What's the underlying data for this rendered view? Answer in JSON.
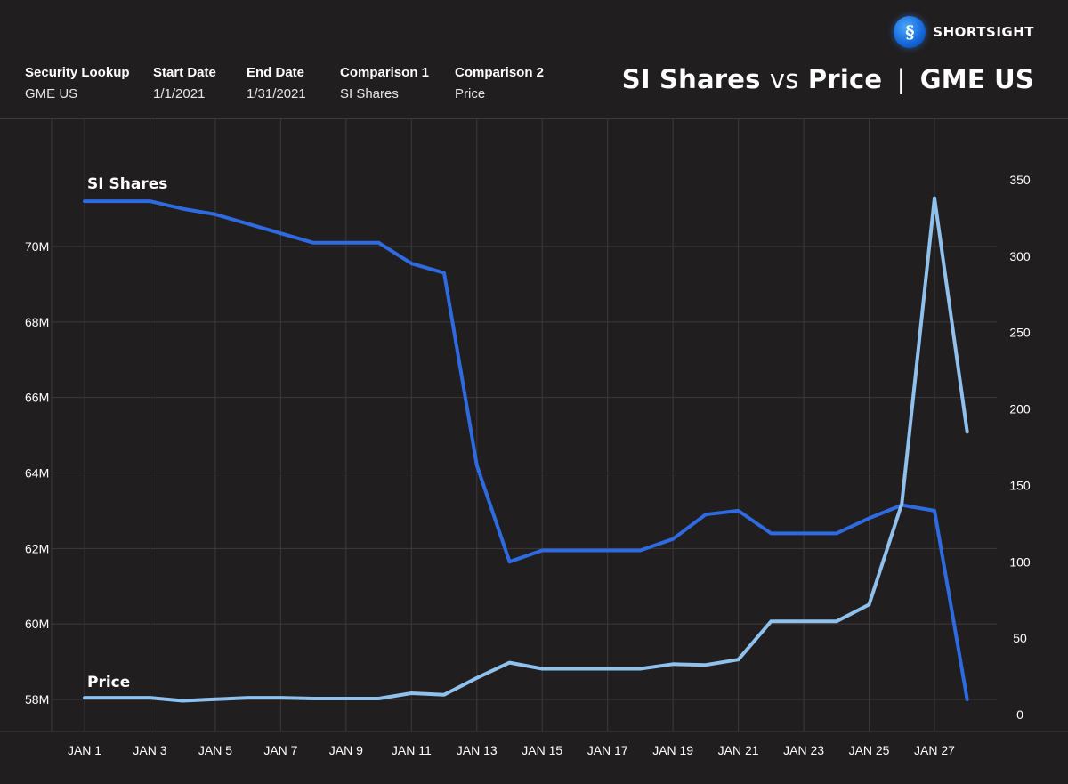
{
  "brand": {
    "name": "SHORTSIGHT",
    "badge_glyph": "§"
  },
  "meta": [
    {
      "label": "Security Lookup",
      "value": "GME US"
    },
    {
      "label": "Start Date",
      "value": "1/1/2021"
    },
    {
      "label": "End Date",
      "value": "1/31/2021"
    },
    {
      "label": "Comparison 1",
      "value": "SI Shares"
    },
    {
      "label": "Comparison 2",
      "value": "Price"
    }
  ],
  "title": {
    "part1": "SI Shares",
    "vs": "vs",
    "part2": "Price",
    "sep": "|",
    "ticker": "GME US"
  },
  "colors": {
    "background": "#211e1f",
    "si_line": "#2e6ae0",
    "price_line": "#8fc1ec",
    "grid": "#3e3a3b"
  },
  "chart_data": {
    "type": "line",
    "title": "SI Shares vs Price | GME US",
    "categories": [
      "JAN 1",
      "JAN 3",
      "JAN 5",
      "JAN 7",
      "JAN 9",
      "JAN 11",
      "JAN 13",
      "JAN 15",
      "JAN 17",
      "JAN 19",
      "JAN 21",
      "JAN 23",
      "JAN 25",
      "JAN 27"
    ],
    "x": [
      1,
      2,
      3,
      4,
      5,
      6,
      7,
      8,
      9,
      10,
      11,
      12,
      13,
      14,
      15,
      16,
      17,
      18,
      19,
      20,
      21,
      22,
      23,
      24,
      25,
      26,
      27,
      28
    ],
    "left_axis": {
      "ticks": [
        "58M",
        "60M",
        "62M",
        "64M",
        "66M",
        "68M",
        "70M"
      ],
      "ylim": [
        57.5,
        73
      ]
    },
    "right_axis": {
      "ticks": [
        "0",
        "50",
        "100",
        "150",
        "200",
        "250",
        "300",
        "350"
      ],
      "ylim": [
        -8,
        380
      ]
    },
    "series": [
      {
        "name": "SI Shares",
        "axis": "left",
        "label": "SI Shares",
        "values": [
          71.2,
          71.2,
          71.2,
          71.0,
          70.85,
          70.6,
          70.35,
          70.1,
          70.1,
          70.1,
          69.55,
          69.3,
          64.2,
          61.65,
          61.95,
          61.95,
          61.95,
          61.95,
          62.25,
          62.9,
          63.0,
          62.4,
          62.4,
          62.4,
          62.8,
          63.15,
          63.0,
          58.0
        ]
      },
      {
        "name": "Price",
        "axis": "right",
        "label": "Price",
        "values": [
          11,
          11,
          11,
          9,
          10,
          11,
          11,
          10.5,
          10.5,
          10.5,
          14,
          13,
          24,
          34,
          30,
          30,
          30,
          30,
          33,
          32.5,
          36,
          61,
          61,
          61,
          72,
          138,
          338,
          185
        ]
      }
    ]
  }
}
